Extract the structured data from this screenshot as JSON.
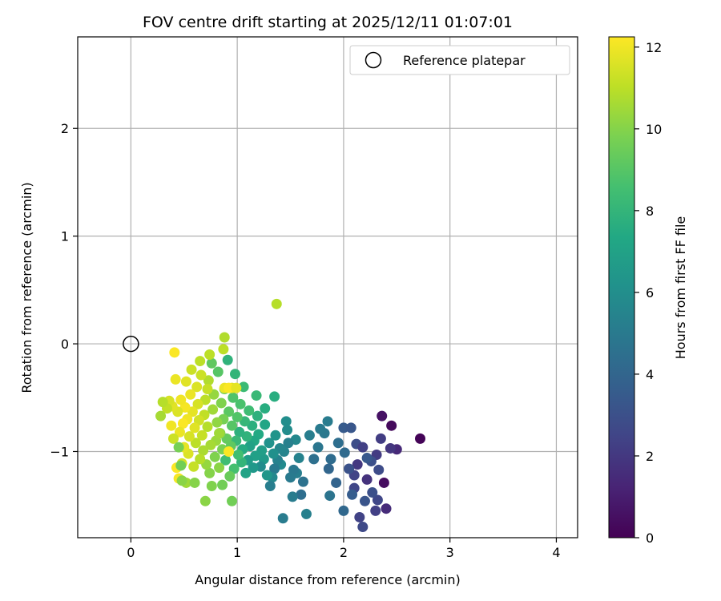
{
  "chart_data": {
    "type": "scatter",
    "title": "FOV centre drift starting at 2025/12/11 01:07:01",
    "xlabel": "Angular distance from reference (arcmin)",
    "ylabel": "Rotation from reference (arcmin)",
    "xlim": [
      -0.5,
      4.2
    ],
    "ylim": [
      -1.8,
      2.85
    ],
    "xticks": [
      0,
      1,
      2,
      3,
      4
    ],
    "xtick_labels": [
      "0",
      "1",
      "2",
      "3",
      "4"
    ],
    "yticks": [
      -1,
      0,
      1,
      2
    ],
    "ytick_labels": [
      "−1",
      "0",
      "1",
      "2"
    ],
    "grid": true,
    "legend": {
      "placement": "top-right",
      "entries": [
        "Reference platepar"
      ]
    },
    "colorbar": {
      "label": "Hours from first FF file",
      "colormap": "viridis",
      "range": [
        0,
        12.25
      ],
      "ticks": [
        0,
        2,
        4,
        6,
        8,
        10,
        12
      ],
      "tick_labels": [
        "0",
        "2",
        "4",
        "6",
        "8",
        "10",
        "12"
      ]
    },
    "reference_point": {
      "x": 0,
      "y": 0
    },
    "points_x_y_hours": [
      [
        2.72,
        -0.88,
        0.1
      ],
      [
        2.45,
        -0.76,
        0.3
      ],
      [
        2.36,
        -0.67,
        0.6
      ],
      [
        2.38,
        -1.29,
        0.4
      ],
      [
        2.4,
        -1.53,
        1.5
      ],
      [
        2.5,
        -0.98,
        1.4
      ],
      [
        2.44,
        -0.97,
        1.9
      ],
      [
        2.35,
        -0.88,
        2.2
      ],
      [
        2.31,
        -1.03,
        2.1
      ],
      [
        2.3,
        -1.55,
        2.3
      ],
      [
        2.32,
        -1.45,
        2.6
      ],
      [
        2.33,
        -1.17,
        2.8
      ],
      [
        2.26,
        -1.09,
        3.0
      ],
      [
        2.2,
        -1.46,
        3.2
      ],
      [
        2.18,
        -1.7,
        2.7
      ],
      [
        2.15,
        -1.61,
        2.4
      ],
      [
        2.22,
        -1.26,
        1.8
      ],
      [
        2.13,
        -1.12,
        2.0
      ],
      [
        2.1,
        -1.22,
        2.5
      ],
      [
        2.05,
        -1.16,
        3.1
      ],
      [
        2.12,
        -0.93,
        2.9
      ],
      [
        2.18,
        -0.96,
        2.3
      ],
      [
        2.22,
        -1.06,
        3.4
      ],
      [
        2.27,
        -1.38,
        3.0
      ],
      [
        2.1,
        -1.34,
        2.6
      ],
      [
        2.0,
        -0.78,
        3.5
      ],
      [
        2.07,
        -0.78,
        3.3
      ],
      [
        2.08,
        -1.4,
        3.6
      ],
      [
        2.0,
        -1.55,
        4.1
      ],
      [
        2.01,
        -1.01,
        4.2
      ],
      [
        1.95,
        -0.92,
        4.4
      ],
      [
        1.93,
        -1.29,
        3.9
      ],
      [
        1.88,
        -1.07,
        4.3
      ],
      [
        1.86,
        -1.16,
        4.0
      ],
      [
        1.87,
        -1.41,
        4.7
      ],
      [
        1.82,
        -0.83,
        4.9
      ],
      [
        1.85,
        -0.72,
        5.1
      ],
      [
        1.78,
        -0.79,
        5.0
      ],
      [
        1.76,
        -0.96,
        4.8
      ],
      [
        1.72,
        -1.07,
        4.5
      ],
      [
        1.68,
        -0.85,
        5.2
      ],
      [
        1.65,
        -1.58,
        5.3
      ],
      [
        1.62,
        -1.28,
        4.6
      ],
      [
        1.6,
        -1.4,
        4.4
      ],
      [
        1.58,
        -1.06,
        5.4
      ],
      [
        1.56,
        -1.2,
        5.2
      ],
      [
        1.55,
        -0.89,
        5.7
      ],
      [
        1.53,
        -1.17,
        4.9
      ],
      [
        1.52,
        -1.42,
        5.1
      ],
      [
        1.5,
        -1.24,
        5.0
      ],
      [
        1.48,
        -0.92,
        5.3
      ],
      [
        1.47,
        -0.8,
        5.9
      ],
      [
        1.46,
        -0.72,
        6.0
      ],
      [
        1.43,
        -1.62,
        5.1
      ],
      [
        1.44,
        -1.0,
        5.5
      ],
      [
        1.41,
        -1.12,
        5.8
      ],
      [
        1.4,
        -0.97,
        5.6
      ],
      [
        1.38,
        -1.08,
        5.4
      ],
      [
        1.36,
        -0.85,
        6.3
      ],
      [
        1.35,
        -1.16,
        5.0
      ],
      [
        1.34,
        -1.02,
        6.1
      ],
      [
        1.33,
        -1.24,
        5.7
      ],
      [
        1.31,
        -1.32,
        5.2
      ],
      [
        1.3,
        -0.92,
        6.2
      ],
      [
        1.28,
        -1.22,
        6.4
      ],
      [
        1.26,
        -0.75,
        7.2
      ],
      [
        1.26,
        -0.6,
        7.6
      ],
      [
        1.25,
        -1.07,
        6.6
      ],
      [
        1.23,
        -0.99,
        6.8
      ],
      [
        1.22,
        -1.14,
        5.9
      ],
      [
        1.2,
        -0.84,
        7.4
      ],
      [
        1.19,
        -0.67,
        7.8
      ],
      [
        1.18,
        -0.48,
        8.2
      ],
      [
        1.17,
        -1.04,
        6.9
      ],
      [
        1.16,
        -0.9,
        7.3
      ],
      [
        1.15,
        -1.15,
        6.5
      ],
      [
        1.14,
        -0.76,
        7.7
      ],
      [
        1.12,
        -0.95,
        7.0
      ],
      [
        1.11,
        -0.62,
        8.4
      ],
      [
        1.1,
        -1.08,
        6.7
      ],
      [
        1.09,
        -0.86,
        7.9
      ],
      [
        1.08,
        -1.2,
        7.1
      ],
      [
        1.07,
        -0.72,
        8.1
      ],
      [
        1.06,
        -0.4,
        8.3
      ],
      [
        1.05,
        -0.98,
        7.5
      ],
      [
        1.04,
        -1.1,
        8.0
      ],
      [
        1.03,
        -0.56,
        8.7
      ],
      [
        1.02,
        -0.82,
        7.8
      ],
      [
        1.01,
        -1.03,
        8.5
      ],
      [
        1.0,
        -0.68,
        8.9
      ],
      [
        0.99,
        -0.9,
        8.2
      ],
      [
        0.98,
        -0.28,
        8.0
      ],
      [
        0.97,
        -1.16,
        8.6
      ],
      [
        0.96,
        -0.5,
        8.8
      ],
      [
        0.95,
        -0.76,
        9.0
      ],
      [
        0.94,
        -0.95,
        9.2
      ],
      [
        0.93,
        -1.23,
        9.4
      ],
      [
        0.92,
        -0.63,
        9.1
      ],
      [
        0.91,
        -0.15,
        7.9
      ],
      [
        0.9,
        -0.88,
        9.3
      ],
      [
        0.89,
        -1.08,
        8.4
      ],
      [
        0.88,
        -0.42,
        9.5
      ],
      [
        0.87,
        -0.7,
        9.7
      ],
      [
        0.86,
        -0.98,
        9.8
      ],
      [
        0.86,
        -1.31,
        9.6
      ],
      [
        0.85,
        -0.55,
        9.9
      ],
      [
        0.84,
        -0.83,
        10.0
      ],
      [
        0.83,
        -1.15,
        10.1
      ],
      [
        0.82,
        -0.26,
        9.0
      ],
      [
        0.81,
        -0.73,
        10.2
      ],
      [
        0.8,
        -0.9,
        10.4
      ],
      [
        0.79,
        -1.05,
        9.9
      ],
      [
        0.78,
        -0.47,
        10.3
      ],
      [
        0.77,
        -0.61,
        10.5
      ],
      [
        0.76,
        -0.18,
        9.2
      ],
      [
        0.75,
        -0.94,
        10.6
      ],
      [
        0.74,
        -1.2,
        10.0
      ],
      [
        0.73,
        -0.34,
        10.8
      ],
      [
        0.72,
        -0.77,
        10.9
      ],
      [
        0.71,
        -1.12,
        10.3
      ],
      [
        0.7,
        -0.52,
        11.0
      ],
      [
        0.69,
        -0.66,
        11.1
      ],
      [
        0.68,
        -0.99,
        10.7
      ],
      [
        0.67,
        -0.85,
        11.2
      ],
      [
        0.66,
        -0.29,
        11.3
      ],
      [
        0.65,
        -1.07,
        10.9
      ],
      [
        0.64,
        -0.71,
        11.4
      ],
      [
        0.63,
        -0.56,
        11.5
      ],
      [
        0.62,
        -0.4,
        11.6
      ],
      [
        0.61,
        -0.92,
        11.0
      ],
      [
        0.6,
        -0.78,
        11.7
      ],
      [
        0.59,
        -1.14,
        11.2
      ],
      [
        0.58,
        -0.63,
        11.8
      ],
      [
        0.57,
        -0.24,
        11.3
      ],
      [
        0.56,
        -0.47,
        11.9
      ],
      [
        0.55,
        -0.86,
        11.5
      ],
      [
        0.54,
        -1.02,
        11.6
      ],
      [
        0.53,
        -0.7,
        12.0
      ],
      [
        0.52,
        -0.35,
        11.7
      ],
      [
        0.51,
        -0.59,
        12.1
      ],
      [
        0.5,
        -0.96,
        11.8
      ],
      [
        0.49,
        -0.74,
        12.2
      ],
      [
        0.48,
        -1.11,
        11.4
      ],
      [
        0.47,
        -0.52,
        12.0
      ],
      [
        0.46,
        -0.82,
        11.9
      ],
      [
        0.45,
        -1.25,
        12.1
      ],
      [
        0.44,
        -0.63,
        11.6
      ],
      [
        0.43,
        -1.15,
        12.2
      ],
      [
        0.42,
        -0.33,
        11.9
      ],
      [
        0.41,
        -0.08,
        12.2
      ],
      [
        0.4,
        -0.88,
        11.3
      ],
      [
        0.39,
        -0.58,
        11.7
      ],
      [
        0.38,
        -0.76,
        12.0
      ],
      [
        0.36,
        -0.53,
        11.5
      ],
      [
        0.34,
        -0.6,
        11.1
      ],
      [
        0.3,
        -0.54,
        10.9
      ],
      [
        0.28,
        -0.67,
        10.6
      ],
      [
        0.52,
        -1.29,
        10.5
      ],
      [
        0.48,
        -1.27,
        10.1
      ],
      [
        0.88,
        0.06,
        10.8
      ],
      [
        0.87,
        -0.05,
        11.0
      ],
      [
        1.35,
        -0.49,
        7.6
      ],
      [
        1.37,
        0.37,
        10.9
      ],
      [
        0.95,
        -0.41,
        11.6
      ],
      [
        0.88,
        -0.41,
        11.9
      ],
      [
        0.92,
        -0.41,
        12.2
      ],
      [
        0.99,
        -0.41,
        11.8
      ],
      [
        0.72,
        -0.42,
        11.2
      ],
      [
        0.65,
        -0.16,
        11.0
      ],
      [
        0.74,
        -0.1,
        11.0
      ],
      [
        0.92,
        -1.0,
        12.2
      ],
      [
        0.95,
        -1.46,
        9.6
      ],
      [
        0.7,
        -1.46,
        10.1
      ],
      [
        0.83,
        -0.83,
        10.5
      ],
      [
        0.76,
        -1.32,
        9.9
      ],
      [
        0.6,
        -1.29,
        10.0
      ],
      [
        0.45,
        -0.96,
        9.7
      ],
      [
        0.47,
        -1.13,
        9.6
      ]
    ]
  }
}
